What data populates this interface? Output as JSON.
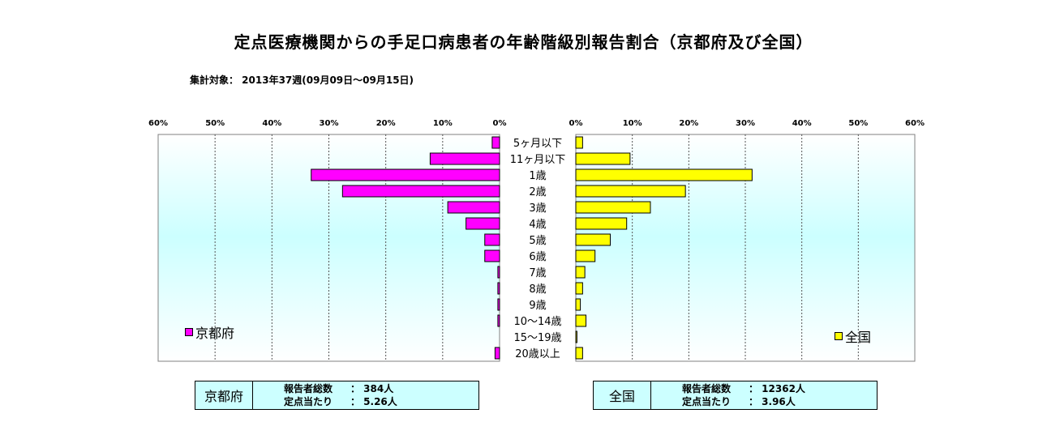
{
  "title": "定点医療機関からの手足口病患者の年齢階級別報告割合（京都府及び全国）",
  "subtitle": "集計対象： 2013年37週(09月09日～09月15日)",
  "chart_data": {
    "type": "bar",
    "orientation": "horizontal",
    "layout": "back-to-back",
    "categories": [
      "5ヶ月以下",
      "11ヶ月以下",
      "1歳",
      "2歳",
      "3歳",
      "4歳",
      "5歳",
      "6歳",
      "7歳",
      "8歳",
      "9歳",
      "10～14歳",
      "15～19歳",
      "20歳以上"
    ],
    "xlim": [
      0,
      60
    ],
    "ticks": [
      "0%",
      "10%",
      "20%",
      "30%",
      "40%",
      "50%",
      "60%"
    ],
    "grid": true,
    "series": [
      {
        "name": "京都府",
        "side": "left",
        "color": "#ff00ff",
        "values": [
          1.3,
          12.2,
          33.1,
          27.6,
          9.1,
          5.9,
          2.6,
          2.6,
          0.3,
          0.3,
          0.3,
          0.3,
          0.0,
          0.8
        ]
      },
      {
        "name": "全国",
        "side": "right",
        "color": "#ffff00",
        "values": [
          1.2,
          9.6,
          31.2,
          19.4,
          13.2,
          9.0,
          6.1,
          3.4,
          1.6,
          1.2,
          0.8,
          1.8,
          0.2,
          1.2
        ]
      }
    ]
  },
  "legend": {
    "left": "京都府",
    "right": "全国"
  },
  "info": {
    "left": {
      "name": "京都府",
      "reporters_label": "報告者総数",
      "reporters_value": "： 384人",
      "per_point_label": "定点当たり",
      "per_point_value": "： 5.26人"
    },
    "right": {
      "name": "全国",
      "reporters_label": "報告者総数",
      "reporters_value": "： 12362人",
      "per_point_label": "定点当たり",
      "per_point_value": "： 3.96人"
    }
  }
}
